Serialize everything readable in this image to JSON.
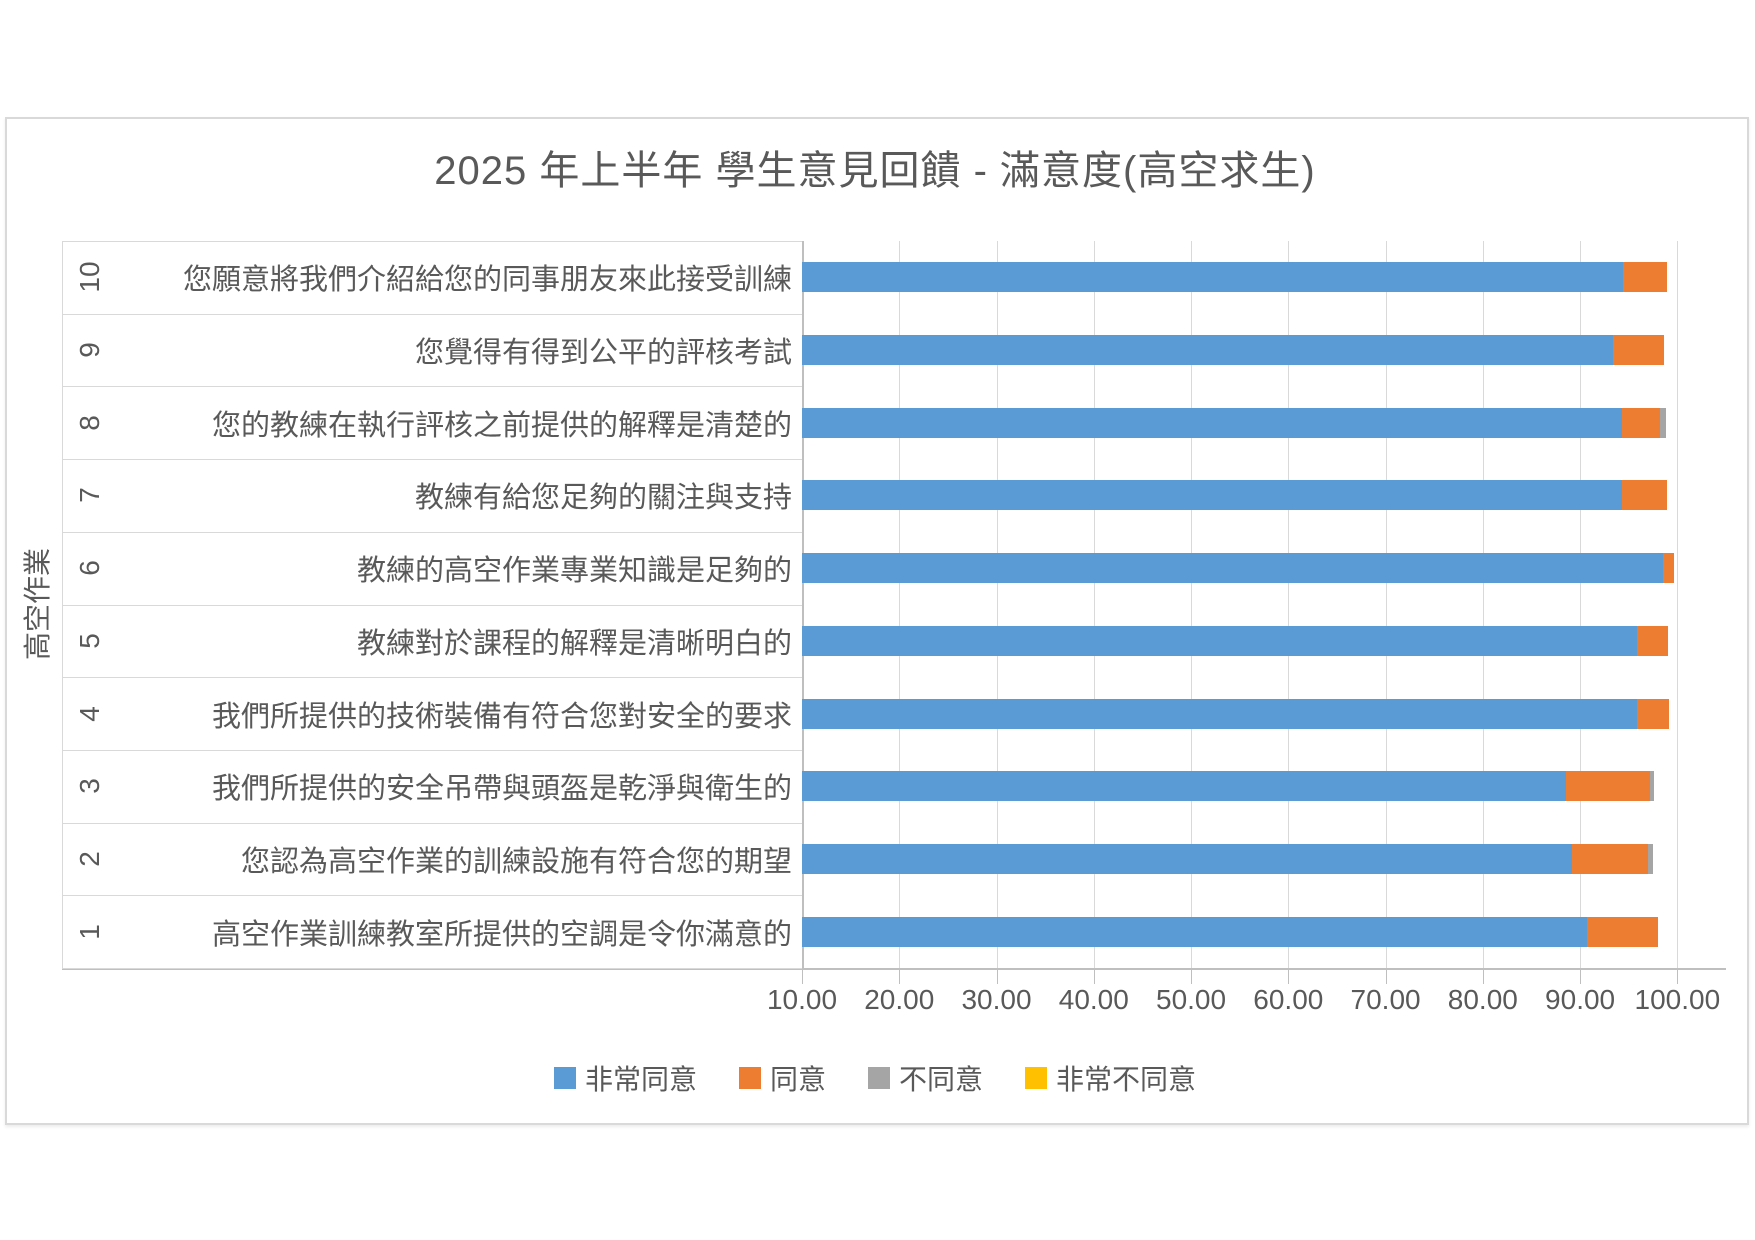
{
  "chart": {
    "title": "2025 年上半年 學生意見回饋 - 滿意度(高空求生)",
    "y_axis_title": "高空作業"
  },
  "chart_data": {
    "type": "bar",
    "orientation": "horizontal",
    "stacked": true,
    "title": "2025 年上半年 學生意見回饋 - 滿意度(高空求生)",
    "xlabel": "",
    "ylabel": "高空作業",
    "axis": {
      "min": 10,
      "max": 105,
      "tick_interval": 10,
      "tick_labels": [
        "10.00",
        "20.00",
        "30.00",
        "40.00",
        "50.00",
        "60.00",
        "70.00",
        "80.00",
        "90.00",
        "100.00"
      ],
      "grid": true
    },
    "legend_position": "bottom",
    "categories": [
      {
        "num": "10",
        "label": "您願意將我們介紹給您的同事朋友來此接受訓練"
      },
      {
        "num": "9",
        "label": "您覺得有得到公平的評核考試"
      },
      {
        "num": "8",
        "label": "您的教練在執行評核之前提供的解釋是清楚的"
      },
      {
        "num": "7",
        "label": "教練有給您足夠的關注與支持"
      },
      {
        "num": "6",
        "label": "教練的高空作業專業知識是足夠的"
      },
      {
        "num": "5",
        "label": "教練對於課程的解釋是清晰明白的"
      },
      {
        "num": "4",
        "label": "我們所提供的技術裝備有符合您對安全的要求"
      },
      {
        "num": "3",
        "label": "我們所提供的安全吊帶與頭盔是乾淨與衛生的"
      },
      {
        "num": "2",
        "label": "您認為高空作業的訓練設施有符合您的期望"
      },
      {
        "num": "1",
        "label": "高空作業訓練教室所提供的空調是令你滿意的"
      }
    ],
    "series": [
      {
        "name": "非常同意",
        "color": "#5B9BD5",
        "values": [
          94.4,
          93.4,
          94.3,
          94.3,
          98.5,
          95.8,
          95.8,
          88.5,
          89.2,
          90.7
        ]
      },
      {
        "name": "同意",
        "color": "#ED7D31",
        "values": [
          4.5,
          5.2,
          3.9,
          4.6,
          1.2,
          3.2,
          3.3,
          8.7,
          7.8,
          7.3
        ]
      },
      {
        "name": "不同意",
        "color": "#A5A5A5",
        "values": [
          0,
          0,
          0.6,
          0,
          0,
          0,
          0,
          0.4,
          0.5,
          0
        ]
      },
      {
        "name": "非常不同意",
        "color": "#FFC000",
        "values": [
          0,
          0,
          0,
          0,
          0,
          0,
          0,
          0,
          0,
          0
        ]
      }
    ]
  },
  "colors": {
    "text": "#595959",
    "gridline": "#D9D9D9",
    "axis_line": "#BFBFBF",
    "frame_border": "#D9D9D9"
  }
}
